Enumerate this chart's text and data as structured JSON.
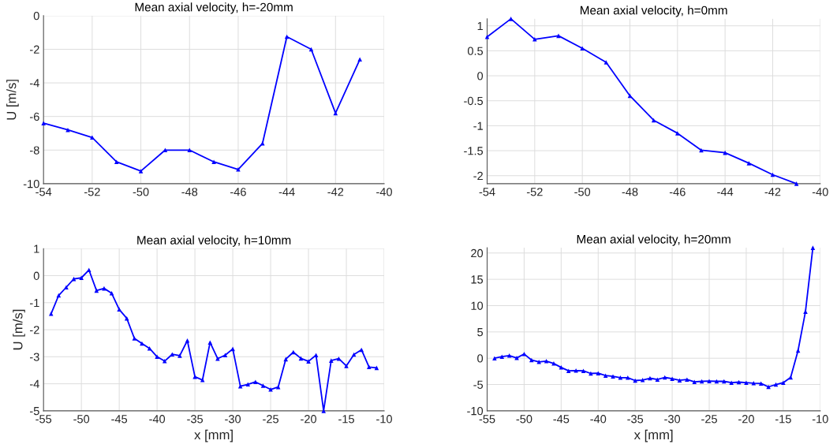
{
  "chart_data": [
    {
      "type": "line",
      "title": "Mean axial velocity, h=-20mm",
      "ylabel": "U [m/s]",
      "x": [
        -54,
        -53,
        -52,
        -51,
        -50,
        -49,
        -48,
        -47,
        -46,
        -45,
        -44,
        -43,
        -42,
        -41
      ],
      "series": [
        {
          "color": "#0000ff",
          "values": [
            -6.4,
            -6.8,
            -7.25,
            -8.7,
            -9.25,
            -8.0,
            -8.0,
            -8.7,
            -9.15,
            -7.6,
            -1.25,
            -2.0,
            -5.8,
            -2.6
          ]
        }
      ],
      "xlim": [
        -54,
        -40
      ],
      "xticks": [
        -54,
        -52,
        -50,
        -48,
        -46,
        -44,
        -42,
        -40
      ],
      "ylim": [
        -10,
        0
      ],
      "yticks": [
        -10,
        -8,
        -6,
        -4,
        -2,
        0
      ],
      "grid": true,
      "marker": "triangle",
      "line_style": "solid"
    },
    {
      "type": "line",
      "title": "Mean axial velocity, h=0mm",
      "x": [
        -54,
        -53,
        -52,
        -51,
        -50,
        -49,
        -48,
        -47,
        -46,
        -45,
        -44,
        -43,
        -42,
        -41
      ],
      "series": [
        {
          "color": "#0000ff",
          "values": [
            0.78,
            1.14,
            0.73,
            0.8,
            0.55,
            0.27,
            -0.4,
            -0.89,
            -1.15,
            -1.49,
            -1.54,
            -1.75,
            -1.98,
            -2.16
          ]
        }
      ],
      "xlim": [
        -54,
        -40
      ],
      "xticks": [
        -54,
        -52,
        -50,
        -48,
        -46,
        -44,
        -42,
        -40
      ],
      "ylim": [
        -2.16,
        1.14
      ],
      "yticks": [
        -2,
        -1.5,
        -1,
        -0.5,
        0,
        0.5,
        1
      ],
      "grid": true,
      "marker": "triangle",
      "line_style": "solid"
    },
    {
      "type": "line",
      "title": "Mean axial velocity, h=10mm",
      "xlabel": "x [mm]",
      "ylabel": "U [m/s]",
      "x": [
        -54,
        -53,
        -52,
        -51,
        -50,
        -49,
        -48,
        -47,
        -46,
        -45,
        -44,
        -43,
        -42,
        -41,
        -40,
        -39,
        -38,
        -37,
        -36,
        -35,
        -34,
        -33,
        -32,
        -31,
        -30,
        -29,
        -28,
        -27,
        -26,
        -25,
        -24,
        -23,
        -22,
        -21,
        -20,
        -19,
        -18,
        -17,
        -16,
        -15,
        -14,
        -13,
        -12,
        -11
      ],
      "series": [
        {
          "color": "#0000ff",
          "values": [
            -1.41,
            -0.73,
            -0.43,
            -0.12,
            -0.08,
            0.21,
            -0.55,
            -0.47,
            -0.65,
            -1.25,
            -1.58,
            -2.32,
            -2.51,
            -2.69,
            -3.0,
            -3.16,
            -2.91,
            -2.96,
            -2.4,
            -3.74,
            -3.86,
            -2.47,
            -3.07,
            -2.94,
            -2.71,
            -4.09,
            -4.02,
            -3.93,
            -4.07,
            -4.21,
            -4.12,
            -3.09,
            -2.83,
            -3.06,
            -3.17,
            -2.94,
            -5.0,
            -3.14,
            -3.07,
            -3.34,
            -2.92,
            -2.74,
            -3.38,
            -3.41
          ]
        }
      ],
      "xlim": [
        -55,
        -10
      ],
      "xticks": [
        -55,
        -50,
        -45,
        -40,
        -35,
        -30,
        -25,
        -20,
        -15,
        -10
      ],
      "ylim": [
        -5,
        1
      ],
      "yticks": [
        -5,
        -4,
        -3,
        -2,
        -1,
        0,
        1
      ],
      "grid": true,
      "marker": "triangle",
      "line_style": "solid"
    },
    {
      "type": "line",
      "title": "Mean axial velocity, h=20mm",
      "xlabel": "x [mm]",
      "x": [
        -54,
        -53,
        -52,
        -51,
        -50,
        -49,
        -48,
        -47,
        -46,
        -45,
        -44,
        -43,
        -42,
        -41,
        -40,
        -39,
        -38,
        -37,
        -36,
        -35,
        -34,
        -33,
        -32,
        -31,
        -30,
        -29,
        -28,
        -27,
        -26,
        -25,
        -24,
        -23,
        -22,
        -21,
        -20,
        -19,
        -18,
        -17,
        -16,
        -15,
        -14,
        -13,
        -12,
        -11
      ],
      "series": [
        {
          "color": "#0000ff",
          "values": [
            0.0,
            0.3,
            0.5,
            0.05,
            0.8,
            -0.35,
            -0.7,
            -0.55,
            -1.0,
            -1.75,
            -2.4,
            -2.35,
            -2.4,
            -2.9,
            -2.85,
            -3.3,
            -3.45,
            -3.7,
            -3.7,
            -4.25,
            -4.15,
            -3.8,
            -4.05,
            -3.65,
            -3.9,
            -4.2,
            -4.05,
            -4.5,
            -4.4,
            -4.35,
            -4.4,
            -4.4,
            -4.65,
            -4.55,
            -4.65,
            -4.75,
            -4.8,
            -5.45,
            -5.0,
            -4.65,
            -3.65,
            1.45,
            8.85,
            21.0
          ]
        }
      ],
      "xlim": [
        -55,
        -10
      ],
      "xticks": [
        -55,
        -50,
        -45,
        -40,
        -35,
        -30,
        -25,
        -20,
        -15,
        -10
      ],
      "ylim": [
        -10,
        21
      ],
      "yticks": [
        -10,
        -5,
        0,
        5,
        10,
        15,
        20
      ],
      "grid": true,
      "marker": "triangle",
      "line_style": "solid"
    }
  ]
}
